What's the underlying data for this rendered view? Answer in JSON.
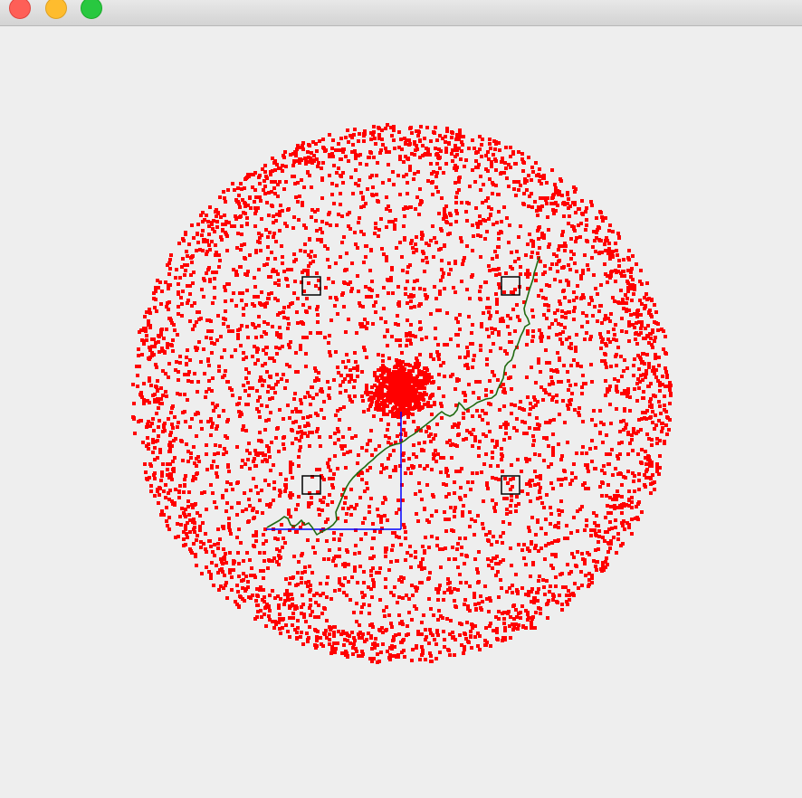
{
  "window": {
    "buttons": {
      "close_icon": "close-icon",
      "minimize_icon": "minimize-icon",
      "zoom_icon": "zoom-icon"
    }
  },
  "colors": {
    "background": "#eeeeee",
    "particles": "#ff0000",
    "path": "#006400",
    "axis": "#0000ff",
    "markers": "#000000",
    "close": "#fe5f57",
    "minimize": "#febc2e",
    "zoom": "#28c840"
  },
  "scene": {
    "particle_cloud": "random-particles",
    "marker_count": 4,
    "markers_icon": "square-marker-icon"
  }
}
